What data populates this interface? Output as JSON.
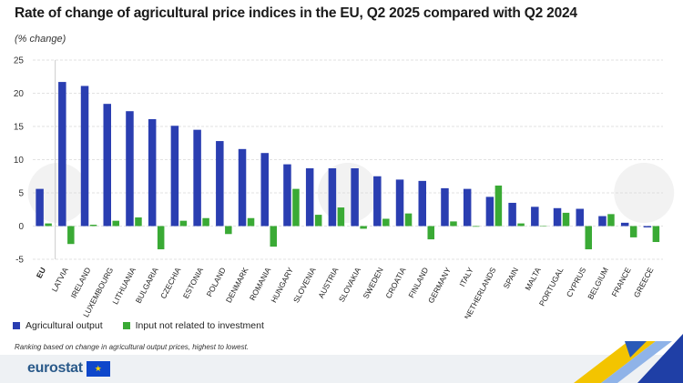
{
  "header": {
    "title": "Rate of change of agricultural price indices in the EU, Q2 2025 compared with Q2 2024",
    "subtitle": "(% change)"
  },
  "legend": {
    "items": [
      {
        "label": "Agricultural output",
        "color": "#2a3eb1"
      },
      {
        "label": "Input not related to investment",
        "color": "#3aaa35"
      }
    ]
  },
  "footnote": "Ranking based on change in agricultural output prices, highest to lowest.",
  "brand": {
    "name": "eurostat",
    "flag_glyph": "★"
  },
  "colors": {
    "output": "#2a3eb1",
    "input": "#3aaa35",
    "grid": "#d9d9d9"
  },
  "chart_data": {
    "type": "bar",
    "categories": [
      "EU",
      "LATVIA",
      "IRELAND",
      "LUXEMBOURG",
      "LITHUANIA",
      "BULGARIA",
      "CZECHIA",
      "ESTONIA",
      "POLAND",
      "DENMARK",
      "ROMANIA",
      "HUNGARY",
      "SLOVENIA",
      "AUSTRIA",
      "SLOVAKIA",
      "SWEDEN",
      "CROATIA",
      "FINLAND",
      "GERMANY",
      "ITALY",
      "NETHERLANDS",
      "SPAIN",
      "MALTA",
      "PORTUGAL",
      "CYPRUS",
      "BELGIUM",
      "FRANCE",
      "GREECE"
    ],
    "series": [
      {
        "name": "Agricultural output",
        "values": [
          5.6,
          21.7,
          21.1,
          18.4,
          17.3,
          16.1,
          15.1,
          14.5,
          12.8,
          11.6,
          11.0,
          9.3,
          8.7,
          8.7,
          8.7,
          7.5,
          7.0,
          6.8,
          5.7,
          5.6,
          4.4,
          3.5,
          2.9,
          2.7,
          2.6,
          1.5,
          0.5,
          -0.2
        ]
      },
      {
        "name": "Input not related to investment",
        "values": [
          0.4,
          -2.7,
          0.2,
          0.8,
          1.3,
          -3.5,
          0.8,
          1.2,
          -1.2,
          1.2,
          -3.1,
          5.6,
          1.7,
          2.8,
          -0.4,
          1.1,
          1.9,
          -2.0,
          0.7,
          -0.1,
          6.1,
          0.4,
          0.0,
          2.0,
          -3.5,
          1.8,
          -1.7,
          -2.4
        ]
      }
    ],
    "ylim": [
      -5,
      25
    ],
    "yticks": [
      -5,
      0,
      5,
      10,
      15,
      20,
      25
    ],
    "grid": "horizontal dashed",
    "legend_position": "bottom-left"
  }
}
